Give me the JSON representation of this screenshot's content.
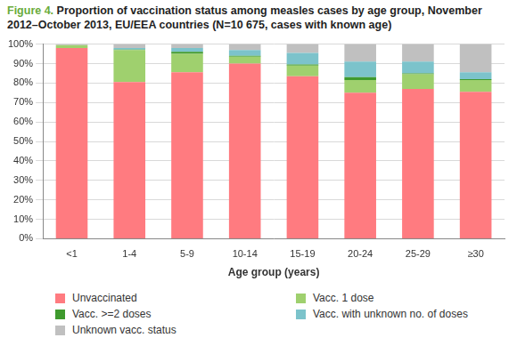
{
  "chart_data": {
    "type": "bar",
    "stacked": true,
    "title": "Figure 4. Proportion of vaccination status among measles cases by age group, November 2012–October 2013, EU/EEA countries (N=10 675, cases with known age)",
    "x_label": "Age group (years)",
    "categories": [
      "<1",
      "1-4",
      "5-9",
      "10-14",
      "15-19",
      "20-24",
      "25-29",
      "≥30"
    ],
    "series": [
      {
        "name": "Unvaccinated",
        "color": "#ff7b80",
        "values": [
          98,
          80.5,
          85.5,
          90,
          83.5,
          75,
          77,
          75.5
        ]
      },
      {
        "name": "Vacc. 1 dose",
        "color": "#9fd06e",
        "values": [
          1.5,
          16.5,
          9.5,
          3.5,
          5.5,
          6.5,
          7.5,
          6
        ]
      },
      {
        "name": "Vacc. >=2 doses",
        "color": "#3f9a2e",
        "values": [
          0,
          0.2,
          1,
          0.5,
          0.5,
          1.5,
          0.5,
          0.5
        ]
      },
      {
        "name": "Vacc. with unknown no. of doses",
        "color": "#7cc3cb",
        "values": [
          0,
          0.8,
          2,
          3,
          6,
          8,
          6,
          3.5
        ]
      },
      {
        "name": "Unknown vacc. status",
        "color": "#c0c0c0",
        "values": [
          0.5,
          2,
          2,
          3,
          4.5,
          9,
          9,
          14.5
        ]
      }
    ],
    "ylim": [
      0,
      100
    ],
    "yticks": [
      {
        "value": 0,
        "label": "0%"
      },
      {
        "value": 10,
        "label": "10%"
      },
      {
        "value": 20,
        "label": "20%"
      },
      {
        "value": 30,
        "label": "30%"
      },
      {
        "value": 40,
        "label": "40%"
      },
      {
        "value": 50,
        "label": "50%"
      },
      {
        "value": 60,
        "label": "60%"
      },
      {
        "value": 70,
        "label": "70%"
      },
      {
        "value": 80,
        "label": "80%"
      },
      {
        "value": 90,
        "label": "90%"
      },
      {
        "value": 100,
        "label": "100%"
      }
    ],
    "grid": true,
    "legend": "bottom"
  }
}
